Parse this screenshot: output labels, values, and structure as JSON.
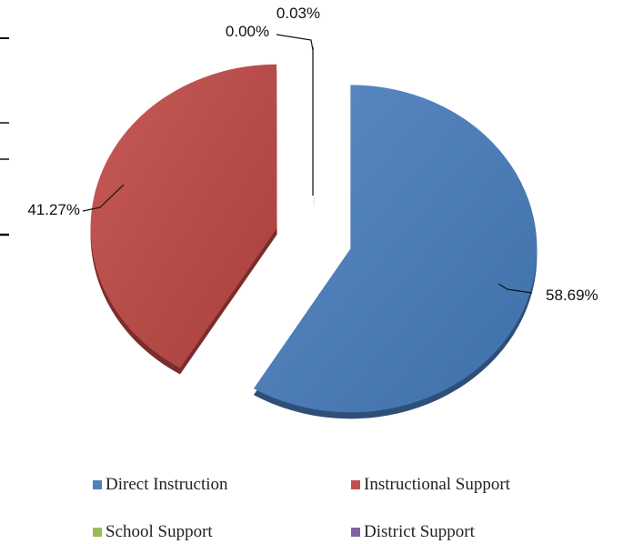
{
  "chart_data": {
    "type": "pie",
    "categories": [
      "Direct Instruction",
      "Instructional Support",
      "School Support",
      "District Support"
    ],
    "values": [
      58.69,
      41.27,
      0.03,
      0.0
    ],
    "data_labels": [
      "58.69%",
      "41.27%",
      "0.03%",
      "0.00%"
    ],
    "colors": [
      "#4f81bd",
      "#c0504d",
      "#9bbb59",
      "#8064a2"
    ],
    "legend_position": "bottom",
    "exploded": true,
    "title": ""
  }
}
